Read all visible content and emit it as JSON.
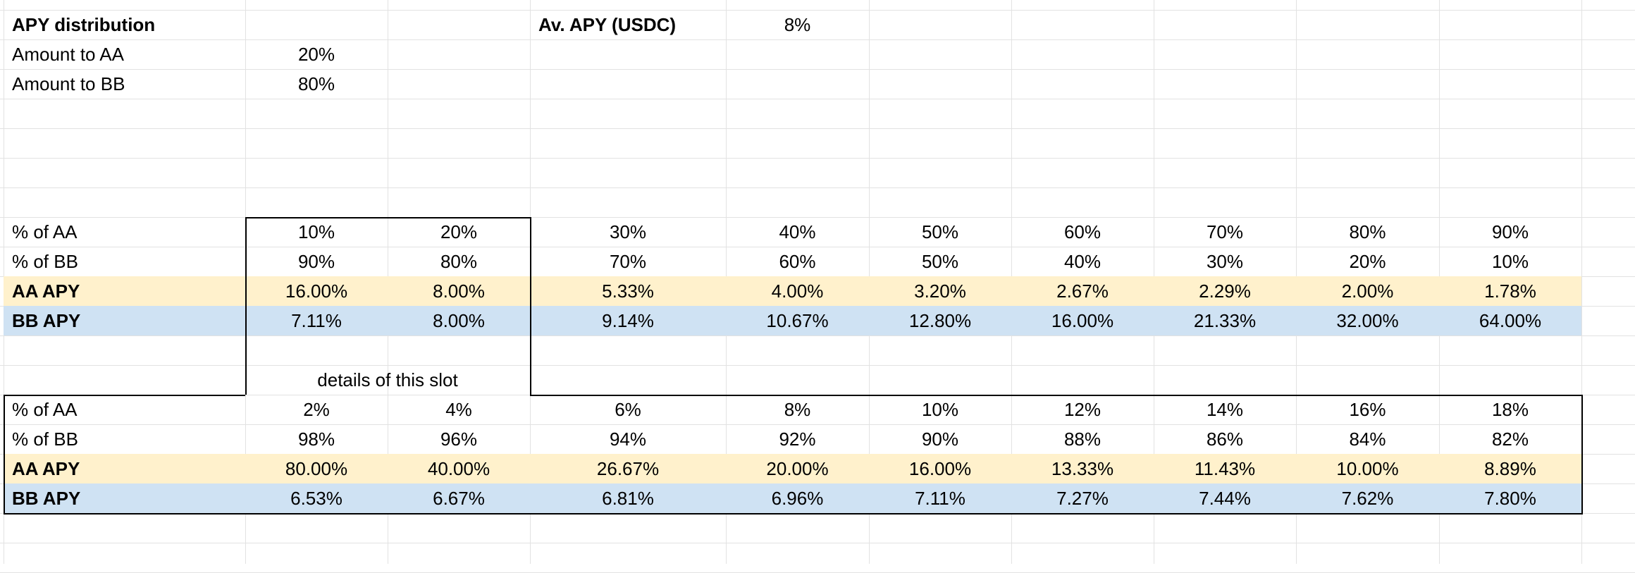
{
  "header": {
    "title": "APY distribution",
    "av_label": "Av. APY (USDC)",
    "av_value": "8%",
    "amount_aa_label": "Amount to AA",
    "amount_aa_value": "20%",
    "amount_bb_label": "Amount to BB",
    "amount_bb_value": "80%"
  },
  "table1": {
    "rows": [
      {
        "label": "% of AA",
        "bold": false,
        "fill": "",
        "values": [
          "10%",
          "20%",
          "30%",
          "40%",
          "50%",
          "60%",
          "70%",
          "80%",
          "90%"
        ]
      },
      {
        "label": "% of BB",
        "bold": false,
        "fill": "",
        "values": [
          "90%",
          "80%",
          "70%",
          "60%",
          "50%",
          "40%",
          "30%",
          "20%",
          "10%"
        ]
      },
      {
        "label": "AA APY",
        "bold": true,
        "fill": "yellow",
        "values": [
          "16.00%",
          "8.00%",
          "5.33%",
          "4.00%",
          "3.20%",
          "2.67%",
          "2.29%",
          "2.00%",
          "1.78%"
        ]
      },
      {
        "label": "BB APY",
        "bold": true,
        "fill": "blue",
        "values": [
          "7.11%",
          "8.00%",
          "9.14%",
          "10.67%",
          "12.80%",
          "16.00%",
          "21.33%",
          "32.00%",
          "64.00%"
        ]
      }
    ]
  },
  "details_label": "details of this slot",
  "table2": {
    "rows": [
      {
        "label": "% of AA",
        "bold": false,
        "fill": "",
        "values": [
          "2%",
          "4%",
          "6%",
          "8%",
          "10%",
          "12%",
          "14%",
          "16%",
          "18%"
        ]
      },
      {
        "label": "% of BB",
        "bold": false,
        "fill": "",
        "values": [
          "98%",
          "96%",
          "94%",
          "92%",
          "90%",
          "88%",
          "86%",
          "84%",
          "82%"
        ]
      },
      {
        "label": "AA APY",
        "bold": true,
        "fill": "yellow",
        "values": [
          "80.00%",
          "40.00%",
          "26.67%",
          "20.00%",
          "16.00%",
          "13.33%",
          "11.43%",
          "10.00%",
          "8.89%"
        ]
      },
      {
        "label": "BB APY",
        "bold": true,
        "fill": "blue",
        "values": [
          "6.53%",
          "6.67%",
          "6.81%",
          "6.96%",
          "7.11%",
          "7.27%",
          "7.44%",
          "7.62%",
          "7.80%"
        ]
      }
    ]
  },
  "colors": {
    "yellow_fill": "#fff1cc",
    "blue_fill": "#cfe2f3",
    "grid": "#e2e2e2"
  }
}
